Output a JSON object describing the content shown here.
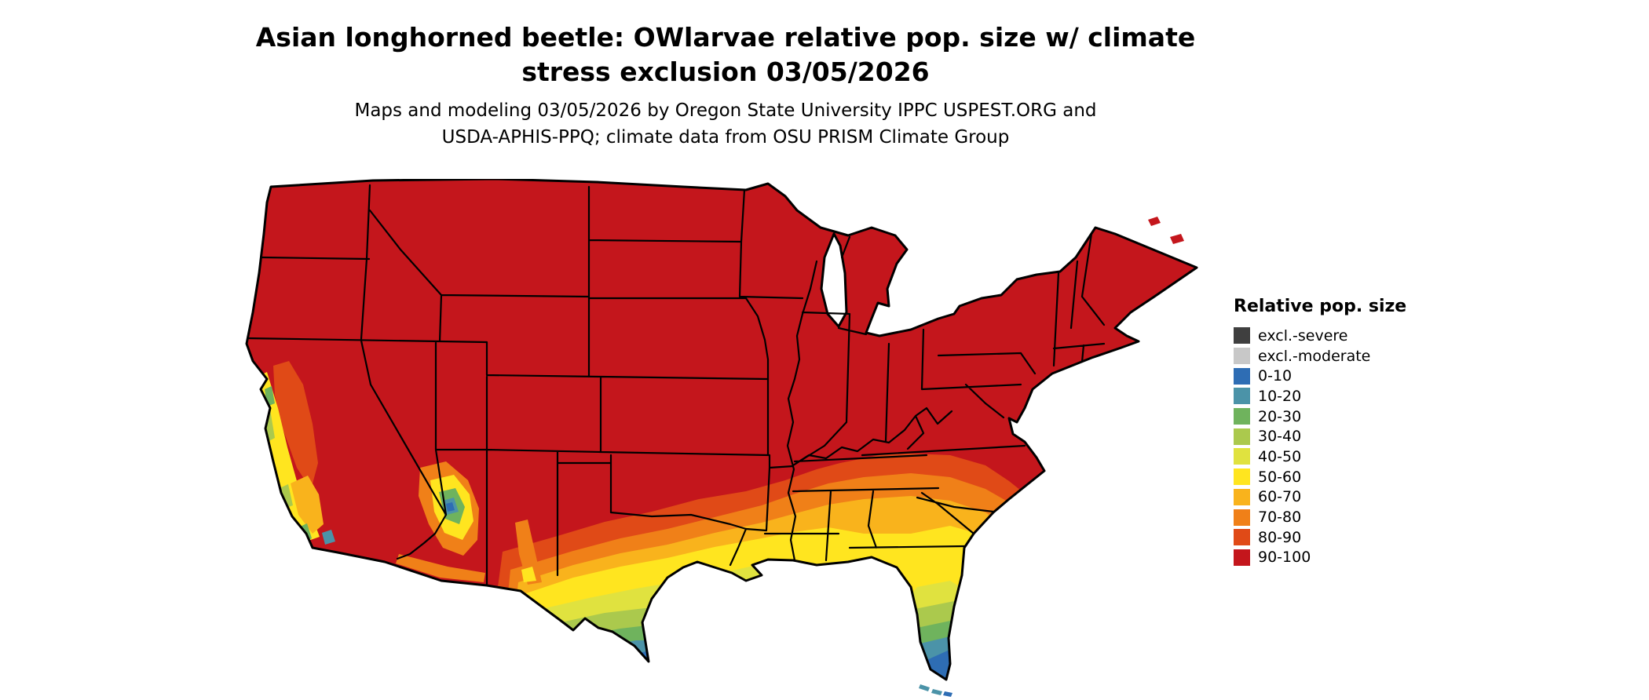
{
  "header": {
    "title_line1": "Asian longhorned beetle: OWlarvae relative pop. size w/ climate",
    "title_line2": "stress exclusion 03/05/2026",
    "subtitle_line1": "Maps and modeling 03/05/2026 by Oregon State University IPPC USPEST.ORG and",
    "subtitle_line2": "USDA-APHIS-PPQ; climate data from OSU PRISM Climate Group"
  },
  "legend": {
    "title": "Relative pop. size",
    "items": [
      {
        "label": "excl.-severe",
        "color": "#3f3f3f"
      },
      {
        "label": "excl.-moderate",
        "color": "#c8c8c8"
      },
      {
        "label": "0-10",
        "color": "#2e6db4"
      },
      {
        "label": "10-20",
        "color": "#4b93a8"
      },
      {
        "label": "20-30",
        "color": "#6fb35d"
      },
      {
        "label": "30-40",
        "color": "#abc94d"
      },
      {
        "label": "40-50",
        "color": "#e0e23f"
      },
      {
        "label": "50-60",
        "color": "#ffe51f"
      },
      {
        "label": "60-70",
        "color": "#f9b31c"
      },
      {
        "label": "70-80",
        "color": "#f08018"
      },
      {
        "label": "80-90",
        "color": "#e04a17"
      },
      {
        "label": "90-100",
        "color": "#c4161c"
      }
    ]
  },
  "map": {
    "region": "Continental United States",
    "outline_color": "#000000",
    "background_color": "#ffffff"
  }
}
